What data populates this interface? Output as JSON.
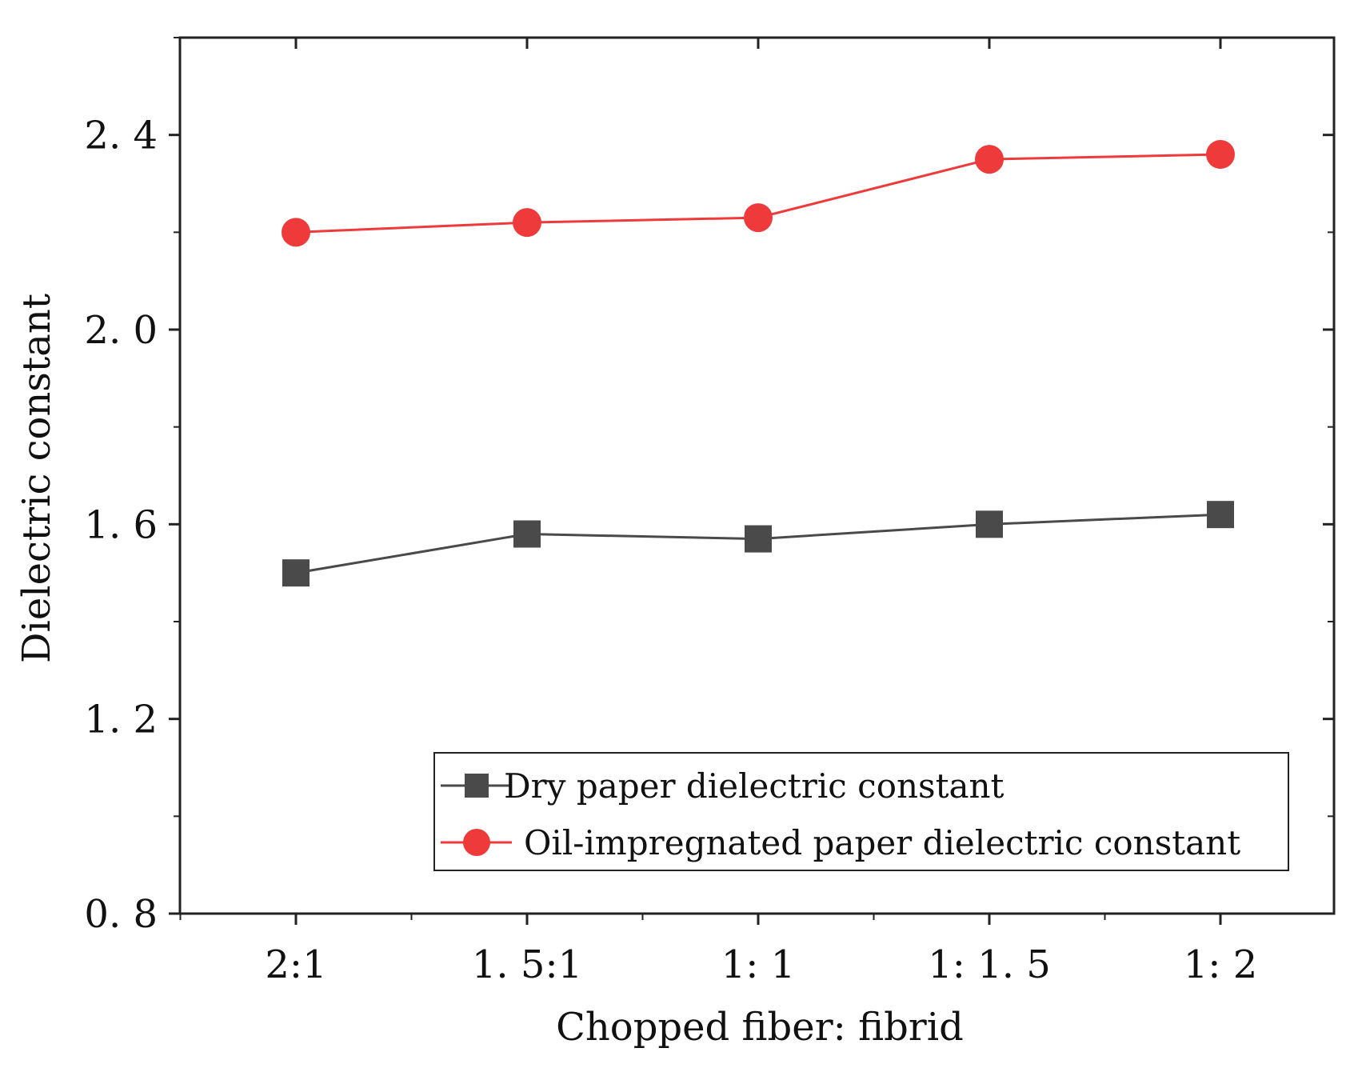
{
  "chart_data": {
    "type": "line",
    "categories": [
      "2:1",
      "1.5:1",
      "1: 1",
      "1: 1.5",
      "1: 2"
    ],
    "series": [
      {
        "name": "Dry paper dielectric constant",
        "values": [
          1.5,
          1.58,
          1.57,
          1.6,
          1.62
        ],
        "color": "#4a4a4a",
        "marker": "square"
      },
      {
        "name": "Oil-impregnated paper dielectric constant",
        "values": [
          2.2,
          2.22,
          2.23,
          2.35,
          2.36
        ],
        "color": "#ee3a3a",
        "marker": "circle"
      }
    ],
    "xlabel": "Chopped fiber: fibrid",
    "ylabel": "Dielectric constant",
    "ylim": [
      0.8,
      2.6
    ],
    "yticks": [
      0.8,
      1.2,
      1.6,
      2.0,
      2.4
    ],
    "ytick_labels": [
      "0. 8",
      "1. 2",
      "1. 6",
      "2. 0",
      "2. 4"
    ],
    "xtick_labels": [
      "2:1",
      "1. 5:1",
      "1:  1",
      "1:  1. 5",
      "1:  2"
    ],
    "grid": false,
    "legend_position": "bottom-right"
  }
}
